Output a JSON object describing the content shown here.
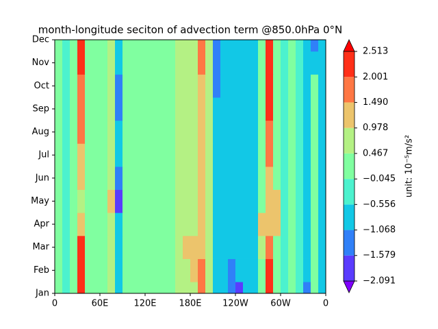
{
  "chart_data": {
    "type": "contourf",
    "title": "month-longitude seciton of advection term @850.0hPa 0°N",
    "x": [
      5,
      15,
      25,
      35,
      45,
      55,
      65,
      75,
      85,
      95,
      105,
      115,
      125,
      135,
      145,
      155,
      165,
      175,
      185,
      195,
      205,
      215,
      225,
      235,
      245,
      255,
      265,
      275,
      285,
      295,
      305,
      315,
      325,
      335,
      345,
      355
    ],
    "y": [
      "Jan",
      "Feb",
      "Mar",
      "Apr",
      "May",
      "Jun",
      "Jul",
      "Aug",
      "Sep",
      "Oct",
      "Nov",
      "Dec"
    ],
    "xlim": [
      0,
      360
    ],
    "xticks": [
      0,
      {
        "value": 60,
        "label": "60E"
      },
      {
        "value": 120,
        "label": "120E"
      },
      {
        "value": 180,
        "label": "180E"
      },
      {
        "value": 240,
        "label": "120W"
      },
      {
        "value": 300,
        "label": "60W"
      },
      {
        "value": 360,
        "label": "0"
      }
    ],
    "values": [
      [
        0.2,
        -0.1,
        0.2,
        2.4,
        0.0,
        0.2,
        0.3,
        0.6,
        -0.9,
        0.0,
        0.2,
        0.2,
        0.2,
        0.3,
        0.2,
        0.3,
        0.5,
        0.7,
        0.9,
        1.6,
        0.5,
        -0.8,
        -0.6,
        -1.3,
        -1.6,
        -0.9,
        -0.6,
        0.3,
        2.2,
        0.4,
        -0.3,
        0.1,
        -0.5,
        -1.2,
        0.0,
        -0.8
      ],
      [
        0.2,
        -0.1,
        0.2,
        2.3,
        0.0,
        0.2,
        0.3,
        0.6,
        -0.9,
        0.0,
        0.2,
        0.2,
        0.2,
        0.3,
        0.2,
        0.3,
        0.5,
        0.7,
        1.1,
        1.5,
        0.5,
        -0.8,
        -0.6,
        -1.2,
        -0.8,
        -0.7,
        -0.6,
        0.3,
        2.3,
        0.4,
        -0.3,
        0.1,
        -0.5,
        -1.0,
        0.0,
        -0.8
      ],
      [
        0.2,
        -0.1,
        0.2,
        2.2,
        0.0,
        0.2,
        0.3,
        0.6,
        -0.9,
        0.0,
        0.2,
        0.2,
        0.2,
        0.3,
        0.2,
        0.3,
        0.5,
        1.0,
        1.2,
        1.3,
        0.5,
        -0.8,
        -0.6,
        -0.8,
        -0.8,
        -0.7,
        -0.6,
        0.8,
        1.8,
        0.4,
        -0.3,
        0.1,
        -0.5,
        -1.0,
        0.0,
        -0.8
      ],
      [
        0.2,
        -0.1,
        0.2,
        1.0,
        0.0,
        0.2,
        0.3,
        0.6,
        -0.6,
        0.0,
        0.2,
        0.2,
        0.2,
        0.3,
        0.2,
        0.3,
        0.5,
        0.7,
        0.9,
        1.3,
        0.5,
        -0.8,
        -0.6,
        -0.8,
        -0.8,
        -0.7,
        -0.6,
        1.0,
        1.2,
        1.0,
        -0.3,
        0.1,
        -0.5,
        -1.0,
        0.0,
        -0.8
      ],
      [
        0.2,
        -0.1,
        0.2,
        0.8,
        0.0,
        0.2,
        0.3,
        1.2,
        -1.6,
        0.0,
        0.2,
        0.2,
        0.2,
        0.3,
        0.2,
        0.3,
        0.5,
        0.7,
        0.9,
        1.3,
        0.5,
        -0.8,
        -0.6,
        -0.8,
        -0.8,
        -0.7,
        -0.6,
        0.3,
        1.0,
        1.1,
        -0.3,
        0.1,
        -0.5,
        -1.0,
        0.0,
        -0.8
      ],
      [
        0.2,
        -0.1,
        0.2,
        1.0,
        0.0,
        0.2,
        0.3,
        0.9,
        -1.3,
        0.0,
        0.2,
        0.2,
        0.2,
        0.3,
        0.2,
        0.3,
        0.5,
        0.7,
        0.9,
        1.3,
        0.5,
        -0.8,
        -0.6,
        -0.8,
        -0.8,
        -0.7,
        -0.6,
        0.3,
        1.3,
        0.4,
        -0.3,
        0.1,
        -0.5,
        -1.0,
        0.0,
        -0.8
      ],
      [
        0.2,
        -0.1,
        0.2,
        1.2,
        0.0,
        0.2,
        0.3,
        0.6,
        -0.9,
        0.0,
        0.2,
        0.2,
        0.2,
        0.3,
        0.2,
        0.3,
        0.5,
        0.7,
        0.9,
        1.3,
        0.5,
        -0.8,
        -0.6,
        -0.8,
        -0.8,
        -0.7,
        -0.6,
        0.3,
        1.6,
        0.4,
        -0.3,
        0.1,
        -0.5,
        -1.0,
        0.0,
        -0.8
      ],
      [
        0.2,
        -0.1,
        0.2,
        1.5,
        0.0,
        0.2,
        0.3,
        0.6,
        -1.0,
        0.0,
        0.2,
        0.2,
        0.2,
        0.3,
        0.2,
        0.3,
        0.5,
        0.7,
        0.9,
        1.0,
        0.5,
        -0.8,
        -0.6,
        -0.8,
        -0.8,
        -0.7,
        -0.6,
        0.3,
        2.0,
        0.4,
        -0.3,
        0.1,
        -0.5,
        -1.0,
        0.0,
        -0.8
      ],
      [
        0.2,
        -0.1,
        0.2,
        1.8,
        0.0,
        0.2,
        0.3,
        0.6,
        -1.1,
        0.0,
        0.2,
        0.2,
        0.2,
        0.3,
        0.2,
        0.3,
        0.5,
        0.7,
        0.9,
        1.3,
        0.5,
        -0.8,
        -0.6,
        -0.8,
        -0.8,
        -0.7,
        -0.6,
        0.3,
        2.2,
        0.4,
        -0.3,
        0.1,
        -0.5,
        -1.0,
        0.0,
        -0.8
      ],
      [
        0.2,
        -0.1,
        0.2,
        1.9,
        0.0,
        0.2,
        0.3,
        0.6,
        -1.2,
        0.0,
        0.2,
        0.2,
        0.2,
        0.3,
        0.2,
        0.3,
        0.5,
        0.7,
        0.9,
        1.3,
        0.5,
        -1.1,
        -0.6,
        -0.8,
        -0.8,
        -0.7,
        -0.6,
        0.3,
        2.2,
        0.4,
        -0.3,
        0.1,
        -0.5,
        -1.0,
        0.0,
        -0.8
      ],
      [
        0.2,
        -0.1,
        0.2,
        2.2,
        0.0,
        0.2,
        0.3,
        0.6,
        -0.9,
        0.0,
        0.2,
        0.2,
        0.2,
        0.3,
        0.2,
        0.3,
        0.5,
        0.7,
        0.9,
        1.5,
        0.5,
        -1.2,
        -0.6,
        -0.8,
        -0.8,
        -0.7,
        -0.6,
        0.3,
        2.3,
        0.4,
        -0.3,
        0.1,
        -0.5,
        -1.0,
        -1.0,
        -0.8
      ],
      [
        0.2,
        -0.1,
        0.2,
        2.3,
        0.0,
        0.2,
        0.3,
        0.6,
        -0.9,
        0.0,
        0.2,
        0.2,
        0.2,
        0.3,
        0.2,
        0.3,
        0.5,
        0.7,
        0.9,
        1.6,
        0.5,
        -1.2,
        -0.6,
        -0.8,
        -0.8,
        -0.7,
        -0.6,
        0.3,
        2.4,
        0.4,
        -0.3,
        0.1,
        -0.5,
        -1.0,
        -1.1,
        -0.8
      ]
    ],
    "levels": [
      {
        "value": -2.091,
        "label": "−2.091"
      },
      {
        "value": -1.579,
        "label": "−1.579"
      },
      {
        "value": -1.068,
        "label": "−1.068"
      },
      {
        "value": -0.556,
        "label": "−0.556"
      },
      {
        "value": -0.045,
        "label": "−0.045"
      },
      0.467,
      0.978,
      1.49,
      2.001,
      2.513
    ],
    "level_labels": [
      "1.490"
    ],
    "colors": [
      "#8000ff",
      "#5a3cfe",
      "#3080f8",
      "#12c8e6",
      "#4cf2ce",
      "#80ffa0",
      "#b4f184",
      "#ecc46c",
      "#ff7744",
      "#ff2f18",
      "#ff0000"
    ],
    "colorbar_label": "unit: 10⁻⁵m/s²"
  }
}
